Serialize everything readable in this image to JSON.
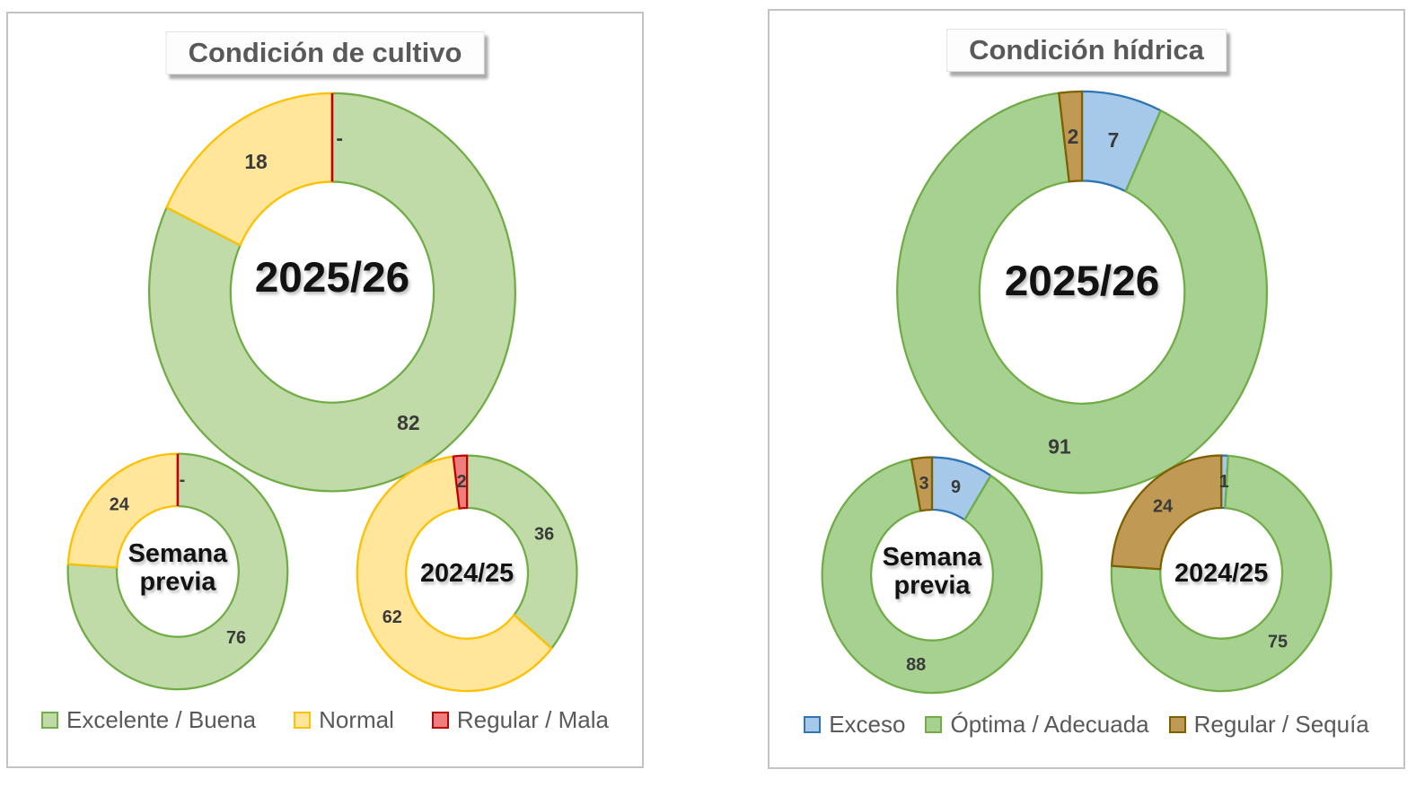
{
  "page": {
    "background": "#FFFFFF"
  },
  "chart_data": [
    {
      "type": "pie",
      "subtype": "donut-multiple",
      "title": "Condición de cultivo",
      "legend_position": "bottom",
      "grid": false,
      "categories": [
        "Excelente / Buena",
        "Normal",
        "Regular / Mala"
      ],
      "colors": [
        {
          "name": "green",
          "fill": "#C0DBA7",
          "border": "#70AD47"
        },
        {
          "name": "yellow",
          "fill": "#FFE69B",
          "border": "#FFC000"
        },
        {
          "name": "red",
          "fill": "#EE7D7D",
          "border": "#C00000"
        }
      ],
      "series": [
        {
          "name": "2025/26",
          "center_label": "2025/26",
          "values": [
            82,
            18,
            0
          ],
          "value_labels": [
            "82",
            "18",
            "-"
          ]
        },
        {
          "name": "Semana previa",
          "center_label": "Semana\nprevia",
          "values": [
            76,
            24,
            0
          ],
          "value_labels": [
            "76",
            "24",
            "-"
          ]
        },
        {
          "name": "2024/25",
          "center_label": "2024/25",
          "values": [
            36,
            62,
            2
          ],
          "value_labels": [
            "36",
            "62",
            "2"
          ]
        }
      ]
    },
    {
      "type": "pie",
      "subtype": "donut-multiple",
      "title": "Condición hídrica",
      "legend_position": "bottom",
      "grid": false,
      "categories": [
        "Exceso",
        "Óptima / Adecuada",
        "Regular / Sequía"
      ],
      "colors": [
        {
          "name": "blue",
          "fill": "#A6C9EA",
          "border": "#2E75B6"
        },
        {
          "name": "green",
          "fill": "#A7D190",
          "border": "#70AD47"
        },
        {
          "name": "brown",
          "fill": "#C09A55",
          "border": "#7F6000"
        }
      ],
      "series": [
        {
          "name": "2025/26",
          "center_label": "2025/26",
          "values": [
            7,
            91,
            2
          ],
          "value_labels": [
            "7",
            "91",
            "2"
          ]
        },
        {
          "name": "Semana previa",
          "center_label": "Semana\nprevia",
          "values": [
            9,
            88,
            3
          ],
          "value_labels": [
            "9",
            "88",
            "3"
          ]
        },
        {
          "name": "2024/25",
          "center_label": "2024/25",
          "values": [
            1,
            75,
            24
          ],
          "value_labels": [
            "1",
            "75",
            "24"
          ]
        }
      ]
    }
  ]
}
